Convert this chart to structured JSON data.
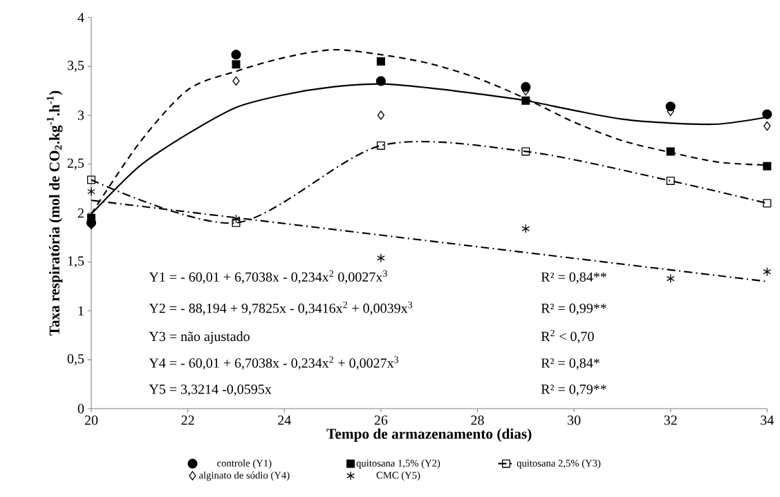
{
  "chart_data": {
    "type": "scatter",
    "xlabel": "Tempo de armazenamento (dias)",
    "ylabel": "Taxa respiratória (mol de CO$_{2}$.kg$^{-1}$.h$^{-1}$)",
    "x": [
      20,
      23,
      26,
      29,
      32,
      34
    ],
    "xlim": [
      20,
      34
    ],
    "xticks": [
      20,
      22,
      24,
      26,
      28,
      30,
      32,
      34
    ],
    "ylim": [
      0,
      4
    ],
    "yticks": [
      0,
      {
        "value": 0.5,
        "label": "0,5"
      },
      1,
      {
        "value": 1.5,
        "label": "1,5"
      },
      2,
      {
        "value": 2.5,
        "label": "2,5"
      },
      3,
      {
        "value": 3.5,
        "label": "3,5"
      },
      4
    ],
    "legend": "bottom",
    "grid": false,
    "series": [
      {
        "name": "controle (Y1)",
        "marker": "circle",
        "color": "#000000",
        "values": [
          1.9,
          3.62,
          3.35,
          3.29,
          3.09,
          3.01
        ]
      },
      {
        "name": "quitosana 1,5% (Y2)",
        "marker": "square",
        "color": "#000000",
        "values": [
          1.95,
          3.52,
          3.55,
          3.15,
          2.63,
          2.48
        ]
      },
      {
        "name": "quitosana 2,5% (Y3)",
        "type": "line",
        "marker": "square",
        "line_style": "dashdot",
        "color": "#000000",
        "values": [
          2.34,
          1.9,
          2.69,
          2.63,
          2.33,
          2.1
        ]
      },
      {
        "name": "alginato de sódio (Y4)",
        "marker": "diamond",
        "color": "#000000",
        "values": [
          1.88,
          3.35,
          3.0,
          3.25,
          3.04,
          2.89
        ]
      },
      {
        "name": "CMC (Y5)",
        "marker": "cross",
        "color": "#000000",
        "values": [
          2.22,
          1.94,
          1.54,
          1.84,
          1.33,
          1.4
        ]
      },
      {
        "type": "line",
        "marker": "none",
        "line_style": "solid",
        "color": "#000000",
        "x": [
          20,
          21,
          22,
          23,
          24,
          25,
          26,
          27,
          28,
          29,
          30,
          31,
          32,
          33,
          34
        ],
        "values": [
          1.99,
          2.48,
          2.81,
          3.08,
          3.21,
          3.29,
          3.32,
          3.28,
          3.22,
          3.15,
          3.05,
          2.96,
          2.92,
          2.91,
          2.98
        ]
      },
      {
        "type": "line",
        "marker": "none",
        "line_style": "dashed",
        "color": "#000000",
        "x": [
          20,
          21,
          22,
          23,
          24,
          25,
          26,
          27,
          28,
          29,
          30,
          31,
          32,
          33,
          34
        ],
        "values": [
          1.99,
          2.72,
          3.26,
          3.45,
          3.59,
          3.67,
          3.62,
          3.53,
          3.38,
          3.17,
          2.93,
          2.74,
          2.62,
          2.52,
          2.49
        ]
      },
      {
        "type": "line",
        "marker": "none",
        "line_style": "dashdot",
        "color": "#000000",
        "x": [
          20,
          34
        ],
        "values": [
          2.13,
          1.3
        ]
      }
    ],
    "annotations": [
      "Y1 = - 60,01 + 6,7038x - 0,234x$^{2}$  0,0027x$^{3}$",
      "R² = 0,84**",
      "Y2 = - 88,194 + 9,7825x - 0,3416x$^{2}$  + 0,0039x$^{3}$",
      "R² = 0,99**",
      "Y3 = não ajustado",
      "R$^{2}$ < 0,70",
      "Y4 = - 60,01 + 6,7038x - 0,234x$^{2}$ + 0,0027x$^{3}$",
      "R² = 0,84*",
      "Y5 = 3,3214 -0,0595x",
      "R² = 0,79**"
    ]
  }
}
